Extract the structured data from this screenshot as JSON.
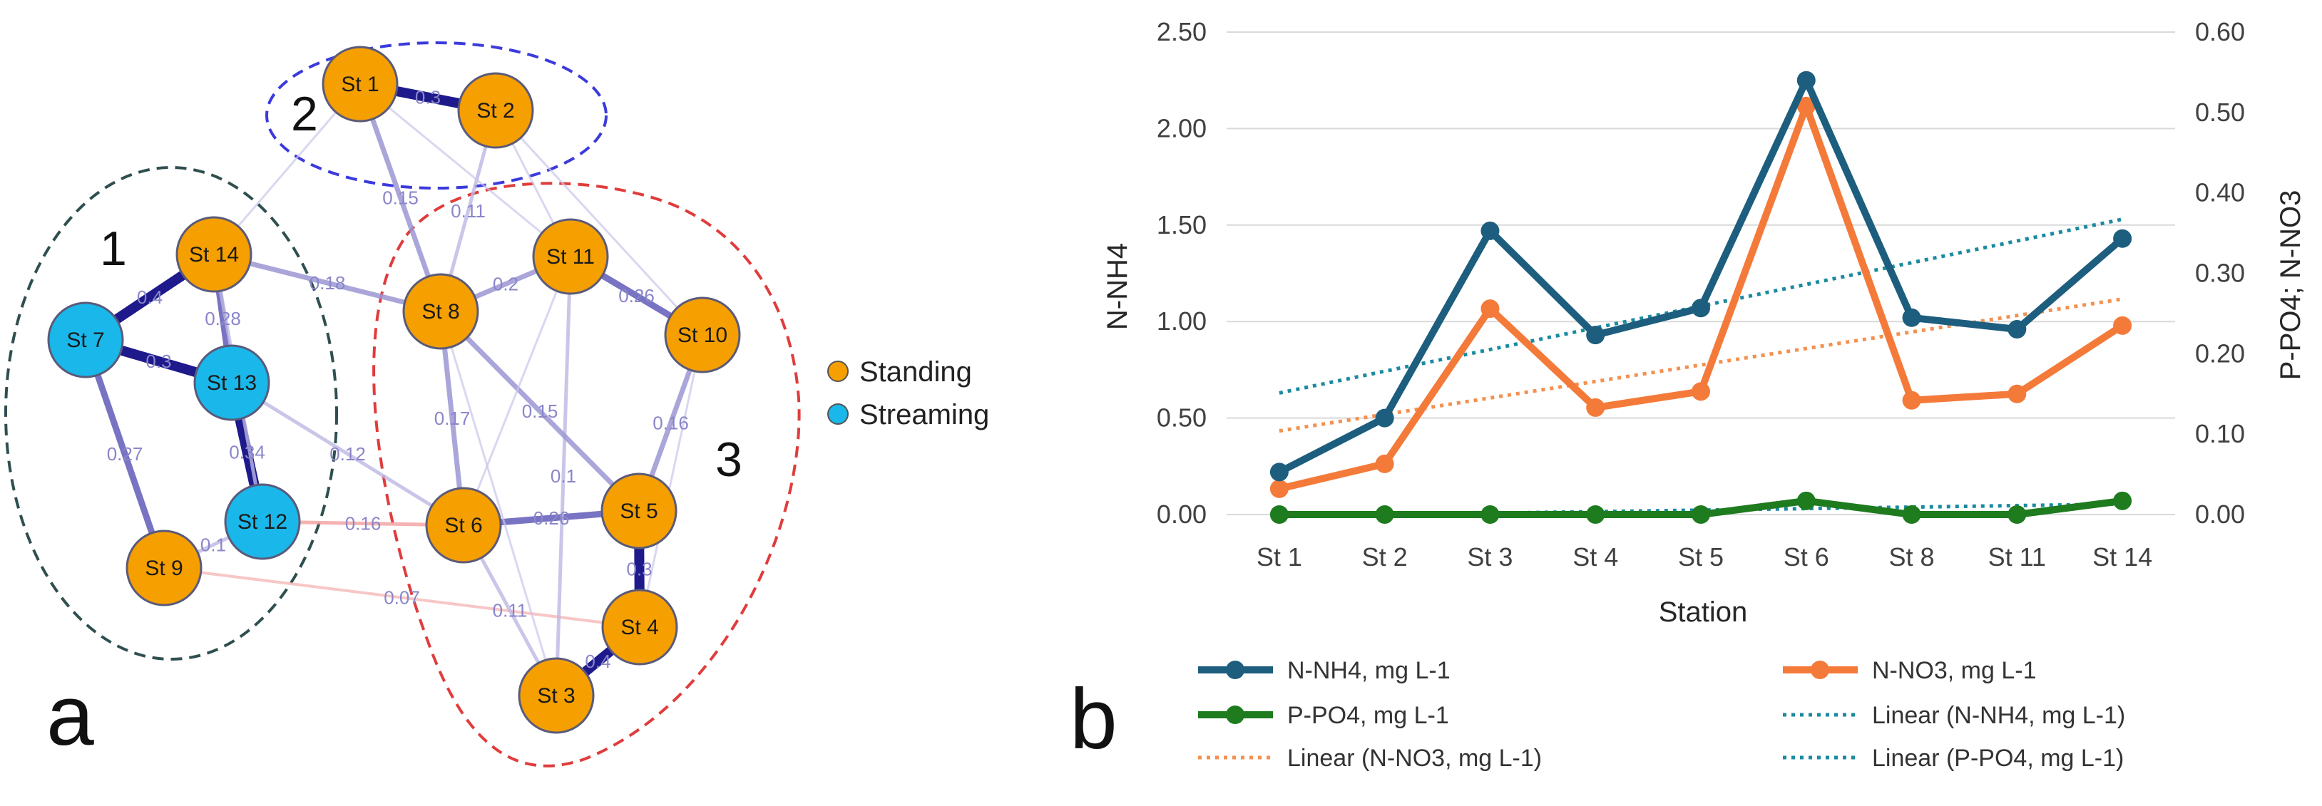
{
  "panel_a": {
    "letter": "a",
    "groups": [
      "1",
      "2",
      "3"
    ],
    "legend": [
      {
        "label": "Standing",
        "color": "#f59f00"
      },
      {
        "label": "Streaming",
        "color": "#1ab7ea"
      }
    ],
    "nodes": [
      {
        "id": "St 1",
        "type": "Standing"
      },
      {
        "id": "St 2",
        "type": "Standing"
      },
      {
        "id": "St 14",
        "type": "Standing"
      },
      {
        "id": "St 7",
        "type": "Streaming"
      },
      {
        "id": "St 13",
        "type": "Streaming"
      },
      {
        "id": "St 12",
        "type": "Streaming"
      },
      {
        "id": "St 9",
        "type": "Standing"
      },
      {
        "id": "St 8",
        "type": "Standing"
      },
      {
        "id": "St 11",
        "type": "Standing"
      },
      {
        "id": "St 10",
        "type": "Standing"
      },
      {
        "id": "St 6",
        "type": "Standing"
      },
      {
        "id": "St 5",
        "type": "Standing"
      },
      {
        "id": "St 4",
        "type": "Standing"
      },
      {
        "id": "St 3",
        "type": "Standing"
      }
    ],
    "edges": [
      {
        "from": "St 1",
        "to": "St 2",
        "label": "0.3"
      },
      {
        "from": "St 14",
        "to": "St 7",
        "label": "0.4"
      },
      {
        "from": "St 14",
        "to": "St 13",
        "label": "0.28"
      },
      {
        "from": "St 14",
        "to": "St 8",
        "label": "0.18"
      },
      {
        "from": "St 13",
        "to": "St 12",
        "label": "0.34"
      },
      {
        "from": "St 7",
        "to": "St 9",
        "label": "0.27"
      },
      {
        "from": "St 7",
        "to": "St 13",
        "label": "0.3"
      },
      {
        "from": "St 8",
        "to": "St 11",
        "label": "0.2"
      },
      {
        "from": "St 8",
        "to": "St 6",
        "label": "0.17"
      },
      {
        "from": "St 11",
        "to": "St 10",
        "label": "0.26"
      },
      {
        "from": "St 10",
        "to": "St 5",
        "label": "0.16"
      },
      {
        "from": "St 6",
        "to": "St 5",
        "label": "0.26"
      },
      {
        "from": "St 12",
        "to": "St 6",
        "label": "0.16"
      },
      {
        "from": "St 9",
        "to": "St 4",
        "label": "0.07"
      },
      {
        "from": "St 6",
        "to": "St 3",
        "label": "0.11"
      },
      {
        "from": "St 5",
        "to": "St 4",
        "label": "0.3"
      },
      {
        "from": "St 3",
        "to": "St 4",
        "label": "0.4"
      },
      {
        "from": "St 1",
        "to": "St 8",
        "label": "0.15"
      },
      {
        "from": "St 2",
        "to": "St 8",
        "label": "0.11"
      },
      {
        "from": "St 11",
        "to": "St 3",
        "label": "0.1"
      },
      {
        "from": "St 12",
        "to": "St 9",
        "label": "0.1"
      },
      {
        "from": "St 8",
        "to": "St 5",
        "label": "0.15"
      },
      {
        "from": "St 14",
        "to": "St 12",
        "label": "0.12"
      },
      {
        "from": "St 13",
        "to": "St 6",
        "label": "0.12"
      },
      {
        "from": "St 1",
        "to": "St 11",
        "label": ""
      },
      {
        "from": "St 2",
        "to": "St 11",
        "label": ""
      },
      {
        "from": "St 2",
        "to": "St 10",
        "label": ""
      },
      {
        "from": "St 1",
        "to": "St 14",
        "label": ""
      },
      {
        "from": "St 11",
        "to": "St 6",
        "label": ""
      },
      {
        "from": "St 10",
        "to": "St 4",
        "label": ""
      },
      {
        "from": "St 8",
        "to": "St 3",
        "label": ""
      }
    ]
  },
  "panel_b": {
    "letter": "b"
  },
  "chart_data": {
    "type": "line",
    "title": "",
    "xlabel": "Station",
    "ylabel": "N-NH4",
    "y2label": "P-PO4; N-NO3",
    "categories": [
      "St 1",
      "St 2",
      "St 3",
      "St 4",
      "St 5",
      "St 6",
      "St 8",
      "St 11",
      "St 14"
    ],
    "ylim": [
      0,
      2.5
    ],
    "y2lim": [
      0,
      0.6
    ],
    "yticks": [
      "0.00",
      "0.50",
      "1.00",
      "1.50",
      "2.00",
      "2.50"
    ],
    "y2ticks": [
      "0.00",
      "0.10",
      "0.20",
      "0.30",
      "0.40",
      "0.50",
      "0.60"
    ],
    "grid": true,
    "legend_position": "bottom",
    "series": [
      {
        "name": "N-NH4, mg L-1",
        "axis": "left",
        "color": "#1d5d7e",
        "values": [
          0.22,
          0.5,
          1.47,
          0.93,
          1.07,
          2.25,
          1.02,
          0.96,
          1.43
        ]
      },
      {
        "name": "N-NO3, mg L-1",
        "axis": "right",
        "color": "#f47a3a",
        "values": [
          0.032,
          0.063,
          0.256,
          0.133,
          0.153,
          0.508,
          0.142,
          0.15,
          0.235
        ]
      },
      {
        "name": "P-PO4, mg L-1",
        "axis": "right",
        "color": "#1e7b1e",
        "values": [
          0.0,
          0.0,
          0.0,
          0.0,
          0.0,
          0.017,
          0.0,
          0.0,
          0.017
        ]
      }
    ],
    "trendlines": [
      {
        "name": "Linear (N-NH4, mg L-1)",
        "axis": "left",
        "color": "#1a8aa0",
        "start": 0.63,
        "end": 1.53
      },
      {
        "name": "Linear (N-NO3, mg L-1)",
        "axis": "right",
        "color": "#f4904f",
        "start": 0.104,
        "end": 0.268
      },
      {
        "name": "Linear (P-PO4, mg L-1)",
        "axis": "right",
        "color": "#1a8aa0",
        "start": -0.002,
        "end": 0.013
      }
    ]
  }
}
